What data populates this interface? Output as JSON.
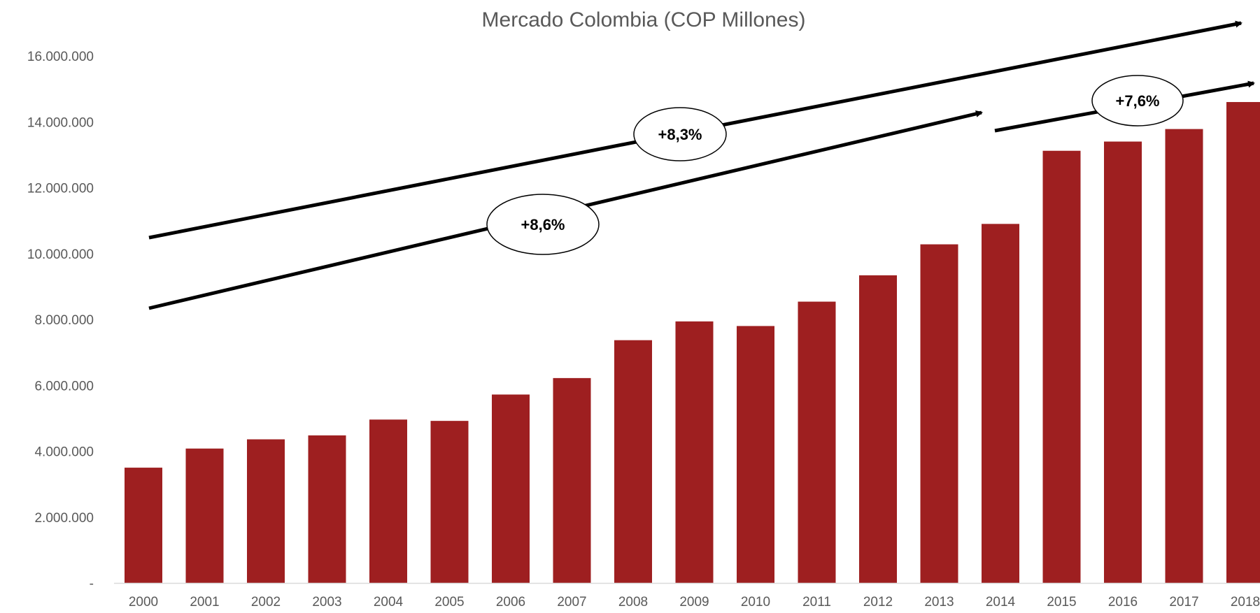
{
  "chart_data": {
    "type": "bar",
    "title": "Mercado Colombia (COP Millones)",
    "xlabel": "",
    "ylabel": "",
    "categories": [
      "2000",
      "2001",
      "2002",
      "2003",
      "2004",
      "2005",
      "2006",
      "2007",
      "2008",
      "2009",
      "2010",
      "2011",
      "2012",
      "2013",
      "2014",
      "2015",
      "2016",
      "2017",
      "2018"
    ],
    "values": [
      3500000,
      4080000,
      4360000,
      4480000,
      4960000,
      4920000,
      5720000,
      6220000,
      7370000,
      7940000,
      7800000,
      8540000,
      9340000,
      10280000,
      10900000,
      13120000,
      13400000,
      13780000,
      14600000
    ],
    "ylim": [
      0,
      16000000
    ],
    "yticks": [
      {
        "value": 0,
        "label": "-"
      },
      {
        "value": 2000000,
        "label": "2.000.000"
      },
      {
        "value": 4000000,
        "label": "4.000.000"
      },
      {
        "value": 6000000,
        "label": "6.000.000"
      },
      {
        "value": 8000000,
        "label": "8.000.000"
      },
      {
        "value": 10000000,
        "label": "10.000.000"
      },
      {
        "value": 12000000,
        "label": "12.000.000"
      },
      {
        "value": 14000000,
        "label": "14.000.000"
      },
      {
        "value": 16000000,
        "label": "16.000.000"
      }
    ],
    "grid": false,
    "bar_color": "#9E1F20",
    "annotations": [
      {
        "label": "+8,3%",
        "from": "2000",
        "to": "2018"
      },
      {
        "label": "+8,6%",
        "from": "2000",
        "to": "2014"
      },
      {
        "label": "+7,6%",
        "from": "2014",
        "to": "2018"
      }
    ]
  }
}
